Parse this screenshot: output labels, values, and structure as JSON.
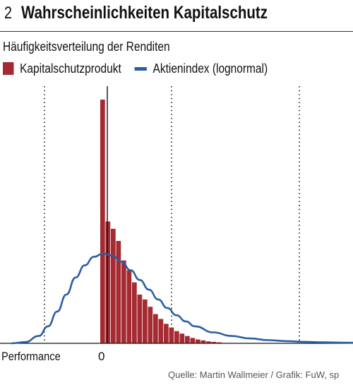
{
  "header": {
    "figure_number": "2",
    "title": "Wahrscheinlichkeiten Kapitalschutz"
  },
  "chart_data": {
    "type": "bar",
    "subtitle": "Häufigkeitsverteilung der Renditen",
    "xlabel": "Performance",
    "x_tick_labels": [
      "0"
    ],
    "grid": "vertical dotted",
    "legend_position": "top-left",
    "series": [
      {
        "name": "Kapitalschutzprodukt",
        "kind": "bar",
        "color": "#a52a32",
        "values": [
          1.0,
          0.5,
          0.47,
          0.42,
          0.34,
          0.3,
          0.25,
          0.2,
          0.18,
          0.15,
          0.12,
          0.1,
          0.08,
          0.065,
          0.05,
          0.04,
          0.03,
          0.022,
          0.016,
          0.012,
          0.008,
          0.006,
          0.004
        ]
      },
      {
        "name": "Aktienindex (lognormal)",
        "kind": "line",
        "color": "#2b5ea5",
        "x": [
          -1.0,
          -0.85,
          -0.7,
          -0.6,
          -0.5,
          -0.4,
          -0.3,
          -0.2,
          -0.1,
          0.0,
          0.1,
          0.2,
          0.3,
          0.4,
          0.5,
          0.6,
          0.7,
          0.8,
          0.9,
          1.0,
          1.2,
          1.4,
          1.6,
          1.8,
          2.0,
          2.2,
          2.4,
          2.6,
          2.8,
          3.0
        ],
        "values": [
          0.0,
          0.005,
          0.03,
          0.07,
          0.13,
          0.2,
          0.27,
          0.32,
          0.355,
          0.368,
          0.36,
          0.335,
          0.3,
          0.26,
          0.22,
          0.18,
          0.145,
          0.115,
          0.09,
          0.07,
          0.045,
          0.03,
          0.02,
          0.013,
          0.009,
          0.006,
          0.004,
          0.003,
          0.002,
          0.001
        ]
      }
    ]
  },
  "source": "Quelle: Martin Wallmeier / Grafik: FuW, sp"
}
